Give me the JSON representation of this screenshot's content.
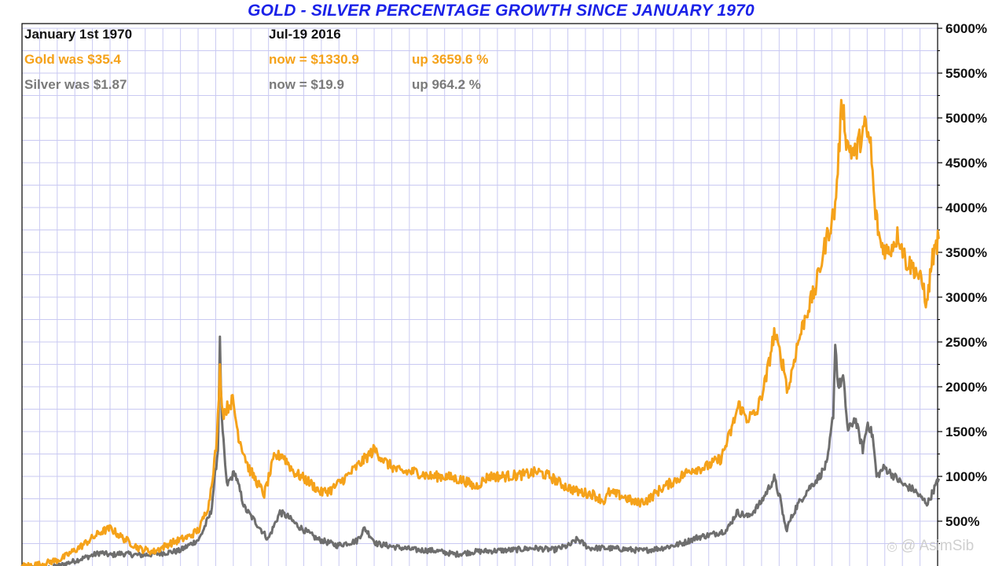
{
  "chart_data": {
    "type": "line",
    "title": "GOLD - SILVER PERCENTAGE GROWTH SINCE JANUARY 1970",
    "x_range": [
      "1970-01",
      "2016-07"
    ],
    "ylim": [
      0,
      6000
    ],
    "y_ticks": [
      500,
      1000,
      1500,
      2000,
      2500,
      3000,
      3500,
      4000,
      4500,
      5000,
      5500,
      6000
    ],
    "y_tick_labels": [
      "500%",
      "1000%",
      "1500%",
      "2000%",
      "2500%",
      "3000%",
      "3500%",
      "4000%",
      "4500%",
      "5000%",
      "5500%",
      "6000%"
    ],
    "y_axis_position": "right",
    "grid": true,
    "colors": {
      "gold": "#f5a21a",
      "silver": "#6e6e6e",
      "title": "#1b22e8",
      "grid": "#c9c9f2"
    },
    "series": [
      {
        "name": "Gold",
        "points": [
          [
            1970.0,
            0
          ],
          [
            1971.0,
            20
          ],
          [
            1972.0,
            80
          ],
          [
            1973.0,
            220
          ],
          [
            1974.0,
            380
          ],
          [
            1974.5,
            420
          ],
          [
            1975.0,
            330
          ],
          [
            1976.0,
            190
          ],
          [
            1976.7,
            160
          ],
          [
            1977.5,
            250
          ],
          [
            1978.5,
            330
          ],
          [
            1979.0,
            410
          ],
          [
            1979.5,
            700
          ],
          [
            1979.9,
            1400
          ],
          [
            1980.05,
            2200
          ],
          [
            1980.2,
            1700
          ],
          [
            1980.7,
            1850
          ],
          [
            1981.0,
            1450
          ],
          [
            1981.5,
            1100
          ],
          [
            1982.3,
            800
          ],
          [
            1982.8,
            1200
          ],
          [
            1983.2,
            1250
          ],
          [
            1983.8,
            1050
          ],
          [
            1984.5,
            950
          ],
          [
            1985.2,
            820
          ],
          [
            1985.7,
            850
          ],
          [
            1986.5,
            1000
          ],
          [
            1987.2,
            1150
          ],
          [
            1987.9,
            1300
          ],
          [
            1988.5,
            1150
          ],
          [
            1989.2,
            1050
          ],
          [
            1990.0,
            1050
          ],
          [
            1990.7,
            1000
          ],
          [
            1991.5,
            1000
          ],
          [
            1992.5,
            950
          ],
          [
            1993.0,
            880
          ],
          [
            1993.7,
            1000
          ],
          [
            1994.5,
            1000
          ],
          [
            1995.5,
            1020
          ],
          [
            1996.2,
            1050
          ],
          [
            1996.8,
            1000
          ],
          [
            1997.5,
            900
          ],
          [
            1998.2,
            830
          ],
          [
            1999.0,
            800
          ],
          [
            1999.6,
            720
          ],
          [
            1999.8,
            820
          ],
          [
            2000.5,
            780
          ],
          [
            2001.2,
            700
          ],
          [
            2001.8,
            740
          ],
          [
            2002.5,
            870
          ],
          [
            2003.2,
            960
          ],
          [
            2004.0,
            1080
          ],
          [
            2004.7,
            1100
          ],
          [
            2005.5,
            1200
          ],
          [
            2006.0,
            1500
          ],
          [
            2006.4,
            1800
          ],
          [
            2006.8,
            1650
          ],
          [
            2007.3,
            1700
          ],
          [
            2007.8,
            2100
          ],
          [
            2008.2,
            2600
          ],
          [
            2008.7,
            2200
          ],
          [
            2008.9,
            1950
          ],
          [
            2009.3,
            2400
          ],
          [
            2009.8,
            2800
          ],
          [
            2010.3,
            3100
          ],
          [
            2010.8,
            3600
          ],
          [
            2011.3,
            4000
          ],
          [
            2011.65,
            5200
          ],
          [
            2011.9,
            4700
          ],
          [
            2012.3,
            4600
          ],
          [
            2012.8,
            4900
          ],
          [
            2013.1,
            4700
          ],
          [
            2013.3,
            4000
          ],
          [
            2013.6,
            3600
          ],
          [
            2014.0,
            3500
          ],
          [
            2014.5,
            3700
          ],
          [
            2014.9,
            3400
          ],
          [
            2015.4,
            3300
          ],
          [
            2015.8,
            3100
          ],
          [
            2015.95,
            2900
          ],
          [
            2016.2,
            3400
          ],
          [
            2016.55,
            3660
          ]
        ]
      },
      {
        "name": "Silver",
        "points": [
          [
            1970.0,
            0
          ],
          [
            1971.0,
            -40
          ],
          [
            1972.0,
            10
          ],
          [
            1973.0,
            80
          ],
          [
            1974.0,
            150
          ],
          [
            1974.5,
            120
          ],
          [
            1975.0,
            140
          ],
          [
            1976.0,
            120
          ],
          [
            1977.0,
            140
          ],
          [
            1978.0,
            170
          ],
          [
            1979.0,
            300
          ],
          [
            1979.6,
            600
          ],
          [
            1979.95,
            1300
          ],
          [
            1980.05,
            2500
          ],
          [
            1980.15,
            1600
          ],
          [
            1980.4,
            900
          ],
          [
            1980.8,
            1050
          ],
          [
            1981.3,
            650
          ],
          [
            1982.0,
            450
          ],
          [
            1982.5,
            300
          ],
          [
            1983.1,
            600
          ],
          [
            1983.5,
            550
          ],
          [
            1984.0,
            450
          ],
          [
            1985.0,
            300
          ],
          [
            1986.0,
            230
          ],
          [
            1987.0,
            280
          ],
          [
            1987.4,
            420
          ],
          [
            1988.0,
            250
          ],
          [
            1989.0,
            210
          ],
          [
            1990.0,
            180
          ],
          [
            1991.0,
            170
          ],
          [
            1992.0,
            130
          ],
          [
            1993.0,
            160
          ],
          [
            1994.0,
            170
          ],
          [
            1995.0,
            180
          ],
          [
            1996.0,
            200
          ],
          [
            1997.0,
            180
          ],
          [
            1997.8,
            230
          ],
          [
            1998.2,
            300
          ],
          [
            1998.8,
            200
          ],
          [
            1999.5,
            200
          ],
          [
            2000.5,
            190
          ],
          [
            2001.5,
            170
          ],
          [
            2002.5,
            200
          ],
          [
            2003.5,
            250
          ],
          [
            2004.3,
            320
          ],
          [
            2005.0,
            350
          ],
          [
            2005.8,
            400
          ],
          [
            2006.3,
            600
          ],
          [
            2006.9,
            550
          ],
          [
            2007.5,
            700
          ],
          [
            2008.2,
            980
          ],
          [
            2008.5,
            750
          ],
          [
            2008.8,
            400
          ],
          [
            2009.3,
            650
          ],
          [
            2009.9,
            850
          ],
          [
            2010.5,
            1000
          ],
          [
            2010.9,
            1150
          ],
          [
            2011.2,
            1700
          ],
          [
            2011.3,
            2500
          ],
          [
            2011.45,
            2000
          ],
          [
            2011.7,
            2100
          ],
          [
            2011.95,
            1500
          ],
          [
            2012.3,
            1650
          ],
          [
            2012.7,
            1300
          ],
          [
            2012.95,
            1600
          ],
          [
            2013.2,
            1450
          ],
          [
            2013.4,
            1000
          ],
          [
            2013.8,
            1100
          ],
          [
            2014.3,
            1000
          ],
          [
            2014.8,
            900
          ],
          [
            2015.3,
            850
          ],
          [
            2015.7,
            750
          ],
          [
            2016.0,
            700
          ],
          [
            2016.3,
            850
          ],
          [
            2016.55,
            964
          ]
        ]
      }
    ]
  },
  "info": {
    "start_date": "January 1st 1970",
    "end_date": "Jul-19  2016",
    "gold_start": "Gold was $35.4",
    "gold_now": "now = $1330.9",
    "gold_up": "up 3659.6 %",
    "silver_start": "Silver was $1.87",
    "silver_now": "now = $19.9",
    "silver_up": "up 964.2 %"
  },
  "watermark": {
    "text": "@ AsimSib",
    "icon": "weibo-like-icon"
  }
}
